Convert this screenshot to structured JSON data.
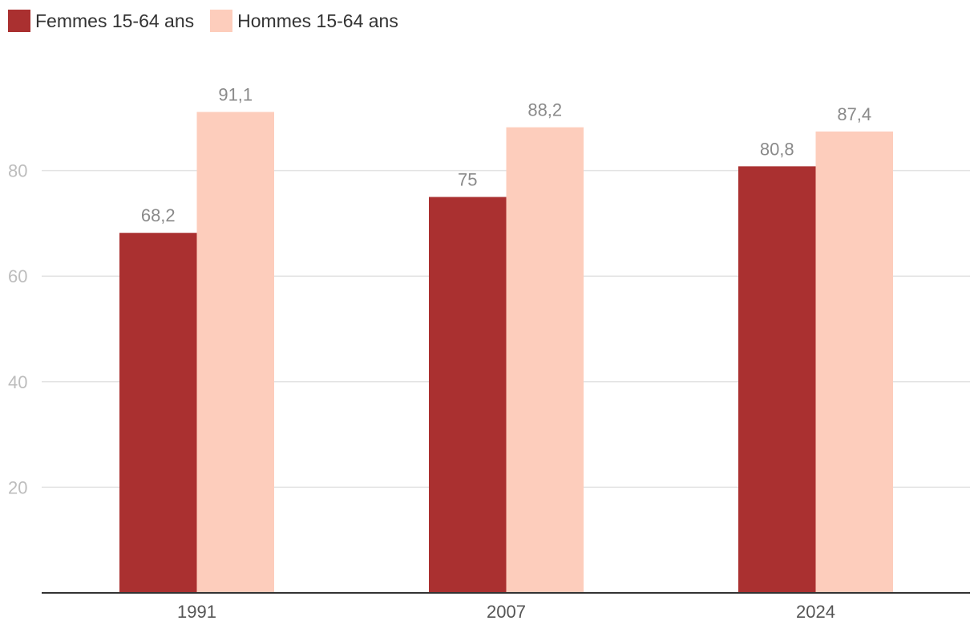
{
  "chart_data": {
    "type": "bar",
    "categories": [
      "1991",
      "2007",
      "2024"
    ],
    "series": [
      {
        "name": "Femmes 15-64 ans",
        "values": [
          68.2,
          75,
          80.8
        ],
        "labels": [
          "68,2",
          "75",
          "80,8"
        ],
        "color": "#aa3030"
      },
      {
        "name": "Hommes 15-64 ans",
        "values": [
          91.1,
          88.2,
          87.4
        ],
        "labels": [
          "91,1",
          "88,2",
          "87,4"
        ],
        "color": "#fdcdbc"
      }
    ],
    "y_ticks": [
      "20",
      "40",
      "60",
      "80"
    ],
    "ylim": [
      0,
      100
    ],
    "grid": true,
    "legend_position": "top-left",
    "colors": {
      "grid": "#e3e3e3",
      "axis": "#333333",
      "tick_y": "#bdbdbd",
      "tick_x": "#555555",
      "value_label": "#8a8a8a"
    }
  }
}
